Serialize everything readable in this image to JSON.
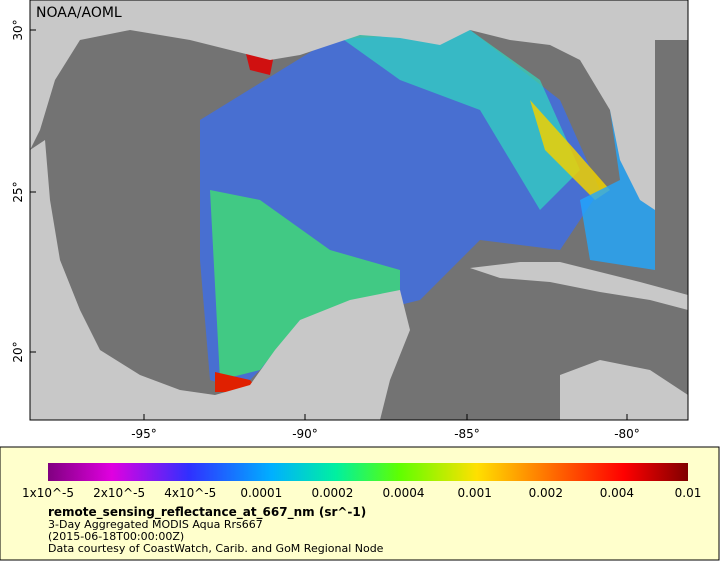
{
  "credit": "NOAA/AOML",
  "lat_labels": [
    "30°",
    "25°",
    "20°"
  ],
  "lon_labels": [
    "-95°",
    "-90°",
    "-85°",
    "-80°"
  ],
  "colorbar": {
    "labels": [
      "1x10^-5",
      "2x10^-5",
      "4x10^-5",
      "0.0001",
      "0.0002",
      "0.0004",
      "0.001",
      "0.002",
      "0.004",
      "0.01"
    ]
  },
  "legend": {
    "variable": "remote_sensing_reflectance_at_667_nm (sr^-1)",
    "lines": [
      "3-Day Aggregated MODIS Aqua Rrs667",
      "(2015-06-18T00:00:00Z)",
      "Data courtesy of CoastWatch, Carib. and GoM Regional Node"
    ]
  }
}
